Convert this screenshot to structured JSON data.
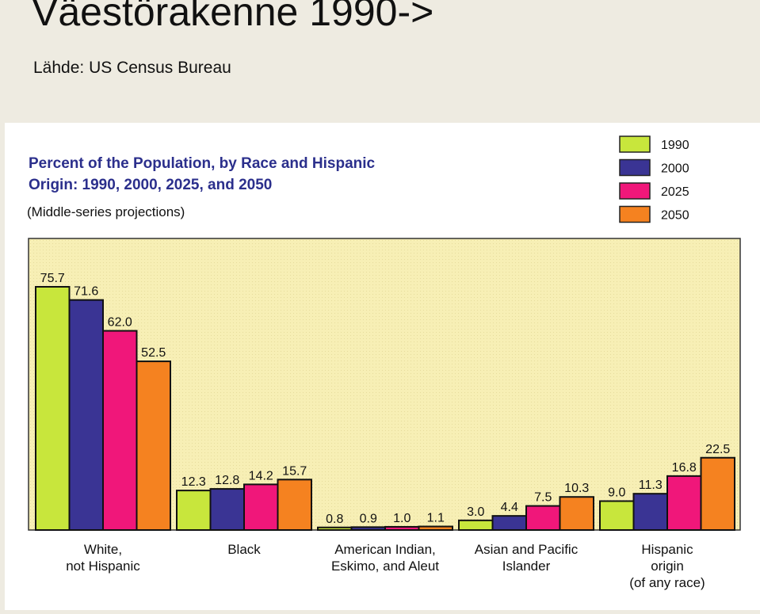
{
  "slide": {
    "title": "Väestörakenne 1990->",
    "subtitle": "Lähde: US Census Bureau"
  },
  "chart_data": {
    "type": "bar",
    "title_lines": [
      "Percent of the Population, by Race and Hispanic",
      "Origin:  1990, 2000, 2025, and 2050"
    ],
    "note": "(Middle-series projections)",
    "legend_placement": "top-right",
    "categories": [
      [
        "White,",
        "not Hispanic"
      ],
      [
        "Black"
      ],
      [
        "American Indian,",
        "Eskimo, and Aleut"
      ],
      [
        "Asian and Pacific",
        "Islander"
      ],
      [
        "Hispanic",
        "origin",
        "(of any race)"
      ]
    ],
    "series": [
      {
        "name": "1990",
        "color": "#c8e63c",
        "values": [
          75.7,
          12.3,
          0.8,
          3.0,
          9.0
        ],
        "labels": [
          "75.7",
          "12.3",
          "0.8",
          "3.0",
          "9.0"
        ]
      },
      {
        "name": "2000",
        "color": "#3a3494",
        "values": [
          71.6,
          12.8,
          0.9,
          4.4,
          11.3
        ],
        "labels": [
          "71.6",
          "12.8",
          "0.9",
          "4.4",
          "11.3"
        ]
      },
      {
        "name": "2025",
        "color": "#f0177a",
        "values": [
          62.0,
          14.2,
          1.0,
          7.5,
          16.8
        ],
        "labels": [
          "62.0",
          "14.2",
          "1.0",
          "7.5",
          "16.8"
        ]
      },
      {
        "name": "2050",
        "color": "#f58220",
        "values": [
          52.5,
          15.7,
          1.1,
          10.3,
          22.5
        ],
        "labels": [
          "52.5",
          "15.7",
          "1.1",
          "10.3",
          "22.5"
        ]
      }
    ],
    "ylim": [
      0,
      80
    ],
    "grid": false,
    "plot_background": "#f7efb5"
  }
}
